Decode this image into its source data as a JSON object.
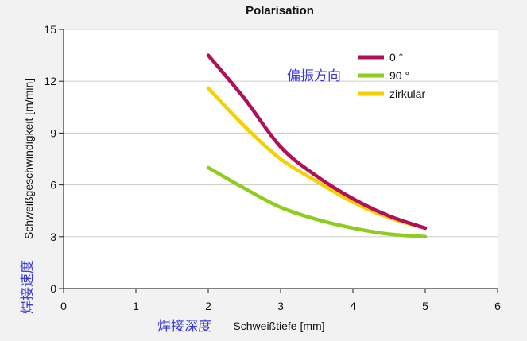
{
  "chart_data": {
    "type": "line",
    "title": "Polarisation",
    "xlabel": "Schweißtiefe [mm]",
    "ylabel": "Schweißgeschwindigkeit [m/min]",
    "xlim": [
      0,
      6
    ],
    "ylim": [
      0,
      15
    ],
    "xticks": [
      "0",
      "1",
      "2",
      "3",
      "4",
      "5",
      "6"
    ],
    "yticks": [
      "0",
      "3",
      "6",
      "9",
      "12",
      "15"
    ],
    "grid": "horizontal",
    "legend_position": "top-right",
    "annotations": {
      "legend_note": "偏振方向",
      "ylabel_note": "焊接速度",
      "xlabel_note": "焊接深度"
    },
    "series": [
      {
        "name": "0 °",
        "color": "#b0105a",
        "points": [
          {
            "x": 2.0,
            "y": 13.5
          },
          {
            "x": 2.5,
            "y": 11.0
          },
          {
            "x": 3.0,
            "y": 8.2
          },
          {
            "x": 3.5,
            "y": 6.5
          },
          {
            "x": 4.0,
            "y": 5.2
          },
          {
            "x": 4.5,
            "y": 4.2
          },
          {
            "x": 5.0,
            "y": 3.5
          }
        ]
      },
      {
        "name": "90 °",
        "color": "#8fcc1e",
        "points": [
          {
            "x": 2.0,
            "y": 7.0
          },
          {
            "x": 2.5,
            "y": 5.8
          },
          {
            "x": 3.0,
            "y": 4.7
          },
          {
            "x": 3.5,
            "y": 4.0
          },
          {
            "x": 4.0,
            "y": 3.5
          },
          {
            "x": 4.5,
            "y": 3.15
          },
          {
            "x": 5.0,
            "y": 3.0
          }
        ]
      },
      {
        "name": "zirkular",
        "color": "#f8d000",
        "points": [
          {
            "x": 2.0,
            "y": 11.6
          },
          {
            "x": 2.5,
            "y": 9.4
          },
          {
            "x": 3.0,
            "y": 7.5
          },
          {
            "x": 3.5,
            "y": 6.2
          },
          {
            "x": 4.0,
            "y": 5.0
          },
          {
            "x": 4.5,
            "y": 4.1
          },
          {
            "x": 5.0,
            "y": 3.5
          }
        ]
      }
    ]
  }
}
